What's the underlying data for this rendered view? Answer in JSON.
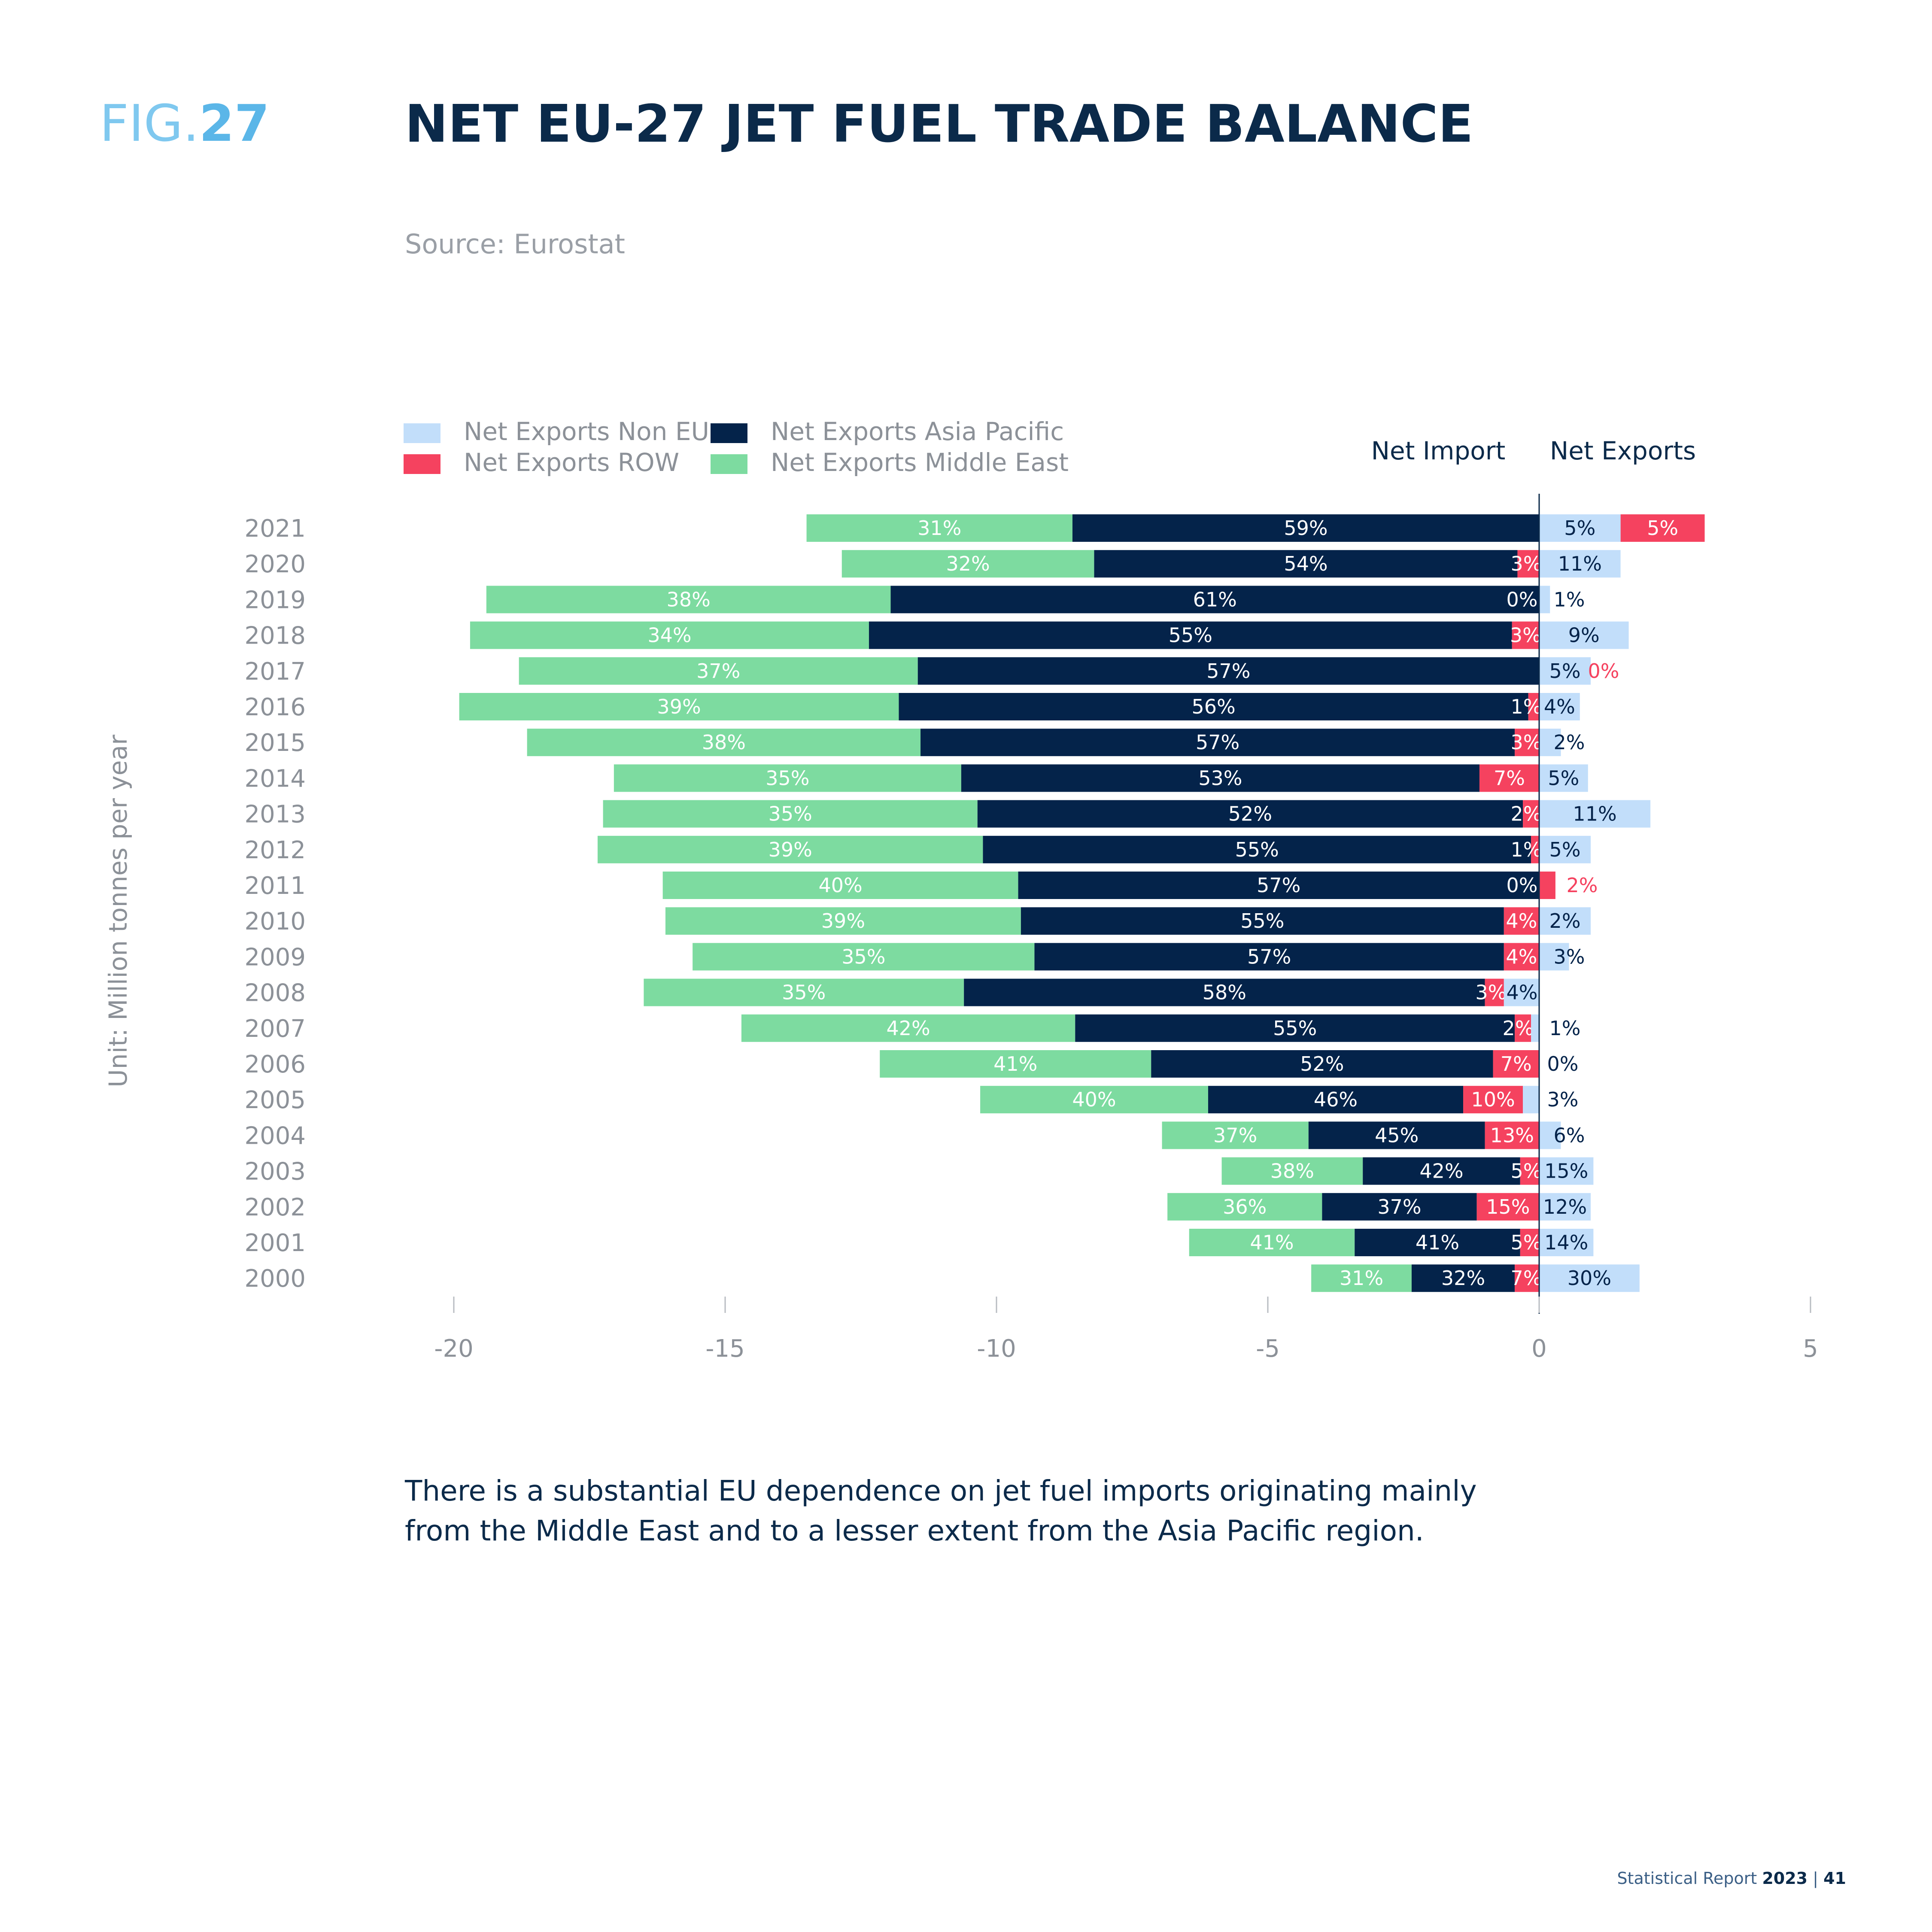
{
  "header": {
    "fig_prefix": "FIG.",
    "fig_number": "27",
    "title": "NET EU-27 JET FUEL TRADE BALANCE",
    "source": "Source: Eurostat"
  },
  "side_labels": {
    "import": "Net Import",
    "export": "Net Exports"
  },
  "caption": {
    "line1": "There is a substantial EU dependence on jet fuel imports originating mainly",
    "line2": "from the Middle East and to a lesser extent from the Asia Pacific region."
  },
  "footer": {
    "text": "Statistical Report",
    "year": "2023",
    "sep": "|",
    "page": "41"
  },
  "colors": {
    "non_eu": "#c2defa",
    "row": "#f5425f",
    "asia_pacific": "#04234a",
    "middle_east": "#7ddba0",
    "axis": "#0b2a4a"
  },
  "chart_data": {
    "type": "bar",
    "orientation": "horizontal",
    "stacked": true,
    "ylabel": "Unit: Million tonnes per year",
    "xlim": [
      -20,
      5
    ],
    "xticks": [
      -20,
      -15,
      -10,
      -5,
      0,
      5
    ],
    "xtick_labels": [
      "-20",
      "-15",
      "-10",
      "-5",
      "0",
      "5"
    ],
    "legend": [
      {
        "name": "Net Exports Non EU",
        "color_key": "non_eu"
      },
      {
        "name": "Net Exports ROW",
        "color_key": "row"
      },
      {
        "name": "Net Exports Asia Pacific",
        "color_key": "asia_pacific"
      },
      {
        "name": "Net Exports Middle East",
        "color_key": "middle_east"
      }
    ],
    "legend_position": "top-left",
    "categories": [
      "2021",
      "2020",
      "2019",
      "2018",
      "2017",
      "2016",
      "2015",
      "2014",
      "2013",
      "2012",
      "2011",
      "2010",
      "2009",
      "2008",
      "2007",
      "2006",
      "2005",
      "2004",
      "2003",
      "2002",
      "2001",
      "2000"
    ],
    "rows": [
      {
        "year": "2021",
        "middle_east": [
          -13.5,
          -8.6,
          "31%"
        ],
        "asia_pacific": [
          -8.6,
          0,
          "59%"
        ],
        "row": [
          1.5,
          3.05,
          "5%"
        ],
        "non_eu": [
          0,
          1.5,
          "5%"
        ]
      },
      {
        "year": "2020",
        "middle_east": [
          -12.85,
          -8.2,
          "32%"
        ],
        "asia_pacific": [
          -8.2,
          -0.4,
          "54%"
        ],
        "row": [
          -0.4,
          0,
          "3%"
        ],
        "non_eu": [
          0,
          1.5,
          "11%"
        ]
      },
      {
        "year": "2019",
        "middle_east": [
          -19.4,
          -11.95,
          "38%"
        ],
        "asia_pacific": [
          -11.95,
          0,
          "61%"
        ],
        "row_label": "0%",
        "non_eu": [
          0,
          0.2,
          "1%"
        ]
      },
      {
        "year": "2018",
        "middle_east": [
          -19.7,
          -12.35,
          "34%"
        ],
        "asia_pacific": [
          -12.35,
          -0.5,
          "55%"
        ],
        "row": [
          -0.5,
          0,
          "3%"
        ],
        "non_eu": [
          0,
          1.65,
          "9%"
        ]
      },
      {
        "year": "2017",
        "middle_east": [
          -18.8,
          -11.45,
          "37%"
        ],
        "asia_pacific": [
          -11.45,
          0,
          "57%"
        ],
        "row_ext_label": "0%",
        "non_eu": [
          0,
          0.95,
          "5%"
        ]
      },
      {
        "year": "2016",
        "middle_east": [
          -19.9,
          -11.8,
          "39%"
        ],
        "asia_pacific": [
          -11.8,
          -0.2,
          "56%"
        ],
        "row": [
          -0.2,
          0,
          "1%"
        ],
        "non_eu": [
          0,
          0.75,
          "4%"
        ]
      },
      {
        "year": "2015",
        "middle_east": [
          -18.65,
          -11.4,
          "38%"
        ],
        "asia_pacific": [
          -11.4,
          -0.45,
          "57%"
        ],
        "row": [
          -0.45,
          0,
          "3%"
        ],
        "non_eu": [
          0,
          0.4,
          "2%"
        ]
      },
      {
        "year": "2014",
        "middle_east": [
          -17.05,
          -10.65,
          "35%"
        ],
        "asia_pacific": [
          -10.65,
          -1.1,
          "53%"
        ],
        "row": [
          -1.1,
          0,
          "7%"
        ],
        "non_eu": [
          0,
          0.9,
          "5%"
        ]
      },
      {
        "year": "2013",
        "middle_east": [
          -17.25,
          -10.35,
          "35%"
        ],
        "asia_pacific": [
          -10.35,
          -0.3,
          "52%"
        ],
        "row": [
          -0.3,
          0,
          "2%"
        ],
        "non_eu": [
          0,
          2.05,
          "11%"
        ]
      },
      {
        "year": "2012",
        "middle_east": [
          -17.35,
          -10.25,
          "39%"
        ],
        "asia_pacific": [
          -10.25,
          -0.15,
          "55%"
        ],
        "row": [
          -0.15,
          0,
          "1%"
        ],
        "non_eu": [
          0,
          0.95,
          "5%"
        ]
      },
      {
        "year": "2011",
        "middle_east": [
          -16.15,
          -9.6,
          "40%"
        ],
        "asia_pacific": [
          -9.6,
          0,
          "57%"
        ],
        "row_label": "0%",
        "row_pos": [
          0,
          0.3,
          "2%"
        ]
      },
      {
        "year": "2010",
        "middle_east": [
          -16.1,
          -9.55,
          "39%"
        ],
        "asia_pacific": [
          -9.55,
          -0.65,
          "55%"
        ],
        "row": [
          -0.65,
          0,
          "4%"
        ],
        "non_eu": [
          0,
          0.95,
          "2%"
        ]
      },
      {
        "year": "2009",
        "middle_east": [
          -15.6,
          -9.3,
          "35%"
        ],
        "asia_pacific": [
          -9.3,
          -0.65,
          "57%"
        ],
        "row": [
          -0.65,
          0,
          "4%"
        ],
        "non_eu": [
          0,
          0.55,
          "3%"
        ]
      },
      {
        "year": "2008",
        "middle_east": [
          -16.5,
          -10.6,
          "35%"
        ],
        "asia_pacific": [
          -10.6,
          -1.0,
          "58%"
        ],
        "row": [
          -1.0,
          -0.65,
          "3%"
        ],
        "non_eu": [
          -0.65,
          0,
          "4%"
        ]
      },
      {
        "year": "2007",
        "middle_east": [
          -14.7,
          -8.55,
          "42%"
        ],
        "asia_pacific": [
          -8.55,
          -0.45,
          "55%"
        ],
        "row": [
          -0.45,
          -0.15,
          "2%"
        ],
        "non_eu": [
          -0.15,
          0,
          "1%"
        ]
      },
      {
        "year": "2006",
        "middle_east": [
          -12.15,
          -7.15,
          "41%"
        ],
        "asia_pacific": [
          -7.15,
          -0.85,
          "52%"
        ],
        "row": [
          -0.85,
          0,
          "7%"
        ],
        "non_eu_label": "0%"
      },
      {
        "year": "2005",
        "middle_east": [
          -10.3,
          -6.1,
          "40%"
        ],
        "asia_pacific": [
          -6.1,
          -1.4,
          "46%"
        ],
        "row": [
          -1.4,
          -0.3,
          "10%"
        ],
        "non_eu": [
          -0.3,
          0,
          "3%"
        ]
      },
      {
        "year": "2004",
        "middle_east": [
          -6.95,
          -4.25,
          "37%"
        ],
        "asia_pacific": [
          -4.25,
          -1.0,
          "45%"
        ],
        "row": [
          -1.0,
          0,
          "13%"
        ],
        "non_eu": [
          0,
          0.4,
          "6%"
        ]
      },
      {
        "year": "2003",
        "middle_east": [
          -5.85,
          -3.25,
          "38%"
        ],
        "asia_pacific": [
          -3.25,
          -0.35,
          "42%"
        ],
        "row": [
          -0.35,
          0,
          "5%"
        ],
        "non_eu": [
          0,
          1.0,
          "15%"
        ]
      },
      {
        "year": "2002",
        "middle_east": [
          -6.85,
          -4.0,
          "36%"
        ],
        "asia_pacific": [
          -4.0,
          -1.15,
          "37%"
        ],
        "row": [
          -1.15,
          0,
          "15%"
        ],
        "non_eu": [
          0,
          0.95,
          "12%"
        ]
      },
      {
        "year": "2001",
        "middle_east": [
          -6.45,
          -3.4,
          "41%"
        ],
        "asia_pacific": [
          -3.4,
          -0.35,
          "41%"
        ],
        "row": [
          -0.35,
          0,
          "5%"
        ],
        "non_eu": [
          0,
          1.0,
          "14%"
        ]
      },
      {
        "year": "2000",
        "middle_east": [
          -4.2,
          -2.35,
          "31%"
        ],
        "asia_pacific": [
          -2.35,
          -0.45,
          "32%"
        ],
        "row": [
          -0.45,
          0,
          "7%"
        ],
        "non_eu": [
          0,
          1.85,
          "30%"
        ]
      }
    ]
  }
}
